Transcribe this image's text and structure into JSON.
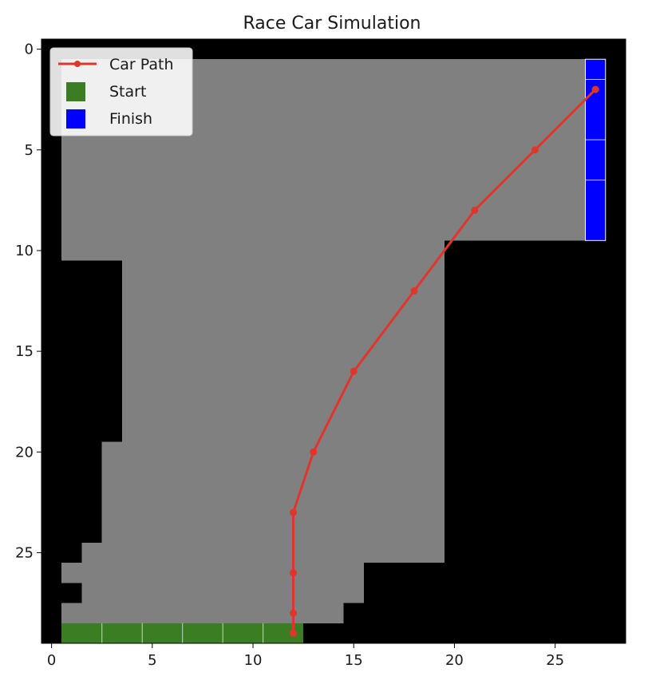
{
  "chart_data": {
    "type": "heatmap",
    "title": "Race Car Simulation",
    "xlabel": "",
    "ylabel": "",
    "xlim": [
      -0.5,
      28.5
    ],
    "ylim": [
      29.5,
      -0.5
    ],
    "xticks": [
      0,
      5,
      10,
      15,
      20,
      25
    ],
    "yticks": [
      0,
      5,
      10,
      15,
      20,
      25
    ],
    "grid": false,
    "legend_position": "top-left",
    "colors": {
      "wall": "#000000",
      "track": "#808080",
      "start": "#3a7d22",
      "finish": "#0000ff",
      "path": "#e0352b"
    },
    "track_rows": [
      {
        "rows": [
          1,
          9
        ],
        "x_start": 1,
        "x_end": 26
      },
      {
        "rows": [
          10,
          10
        ],
        "x_start": 1,
        "x_end": 19
      },
      {
        "rows": [
          11,
          19
        ],
        "x_start": 4,
        "x_end": 19
      },
      {
        "rows": [
          20,
          24
        ],
        "x_start": 3,
        "x_end": 19
      },
      {
        "rows": [
          25,
          25
        ],
        "x_start": 2,
        "x_end": 19
      },
      {
        "rows": [
          26,
          26
        ],
        "x_start": 1,
        "x_end": 15
      },
      {
        "rows": [
          27,
          27
        ],
        "x_start": 2,
        "x_end": 15
      },
      {
        "rows": [
          28,
          28
        ],
        "x_start": 1,
        "x_end": 14
      }
    ],
    "start_cells": {
      "row": 29,
      "x_start": 1,
      "x_end": 12
    },
    "finish_cells": {
      "column": 27,
      "y_start": 1,
      "y_end": 9
    },
    "car_path": {
      "x": [
        12,
        12,
        12,
        12,
        13,
        15,
        18,
        21,
        24,
        27
      ],
      "y": [
        29,
        28,
        26,
        23,
        20,
        16,
        12,
        8,
        5,
        2
      ]
    },
    "legend": [
      {
        "label": "Car Path",
        "kind": "line"
      },
      {
        "label": "Start",
        "kind": "start"
      },
      {
        "label": "Finish",
        "kind": "finish"
      }
    ]
  }
}
